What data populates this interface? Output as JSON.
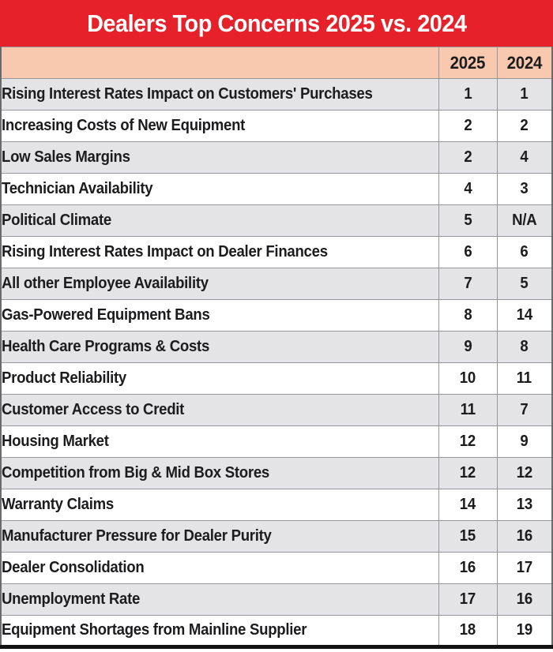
{
  "chart_data": {
    "type": "table",
    "title": "Dealers Top Concerns 2025 vs. 2024",
    "columns": [
      "",
      "2025",
      "2024"
    ],
    "rows": [
      {
        "concern": "Rising Interest Rates Impact on Customers' Purchases",
        "rank_2025": "1",
        "rank_2024": "1"
      },
      {
        "concern": "Increasing Costs of New Equipment",
        "rank_2025": "2",
        "rank_2024": "2"
      },
      {
        "concern": "Low Sales Margins",
        "rank_2025": "2",
        "rank_2024": "4"
      },
      {
        "concern": "Technician Availability",
        "rank_2025": "4",
        "rank_2024": "3"
      },
      {
        "concern": "Political Climate",
        "rank_2025": "5",
        "rank_2024": "N/A"
      },
      {
        "concern": "Rising Interest Rates Impact on Dealer Finances",
        "rank_2025": "6",
        "rank_2024": "6"
      },
      {
        "concern": "All other Employee Availability",
        "rank_2025": "7",
        "rank_2024": "5"
      },
      {
        "concern": "Gas-Powered Equipment Bans",
        "rank_2025": "8",
        "rank_2024": "14"
      },
      {
        "concern": "Health Care Programs & Costs",
        "rank_2025": "9",
        "rank_2024": "8"
      },
      {
        "concern": "Product Reliability",
        "rank_2025": "10",
        "rank_2024": "11"
      },
      {
        "concern": "Customer Access to Credit",
        "rank_2025": "11",
        "rank_2024": "7"
      },
      {
        "concern": "Housing Market",
        "rank_2025": "12",
        "rank_2024": "9"
      },
      {
        "concern": "Competition from Big & Mid Box Stores",
        "rank_2025": "12",
        "rank_2024": "12"
      },
      {
        "concern": "Warranty Claims",
        "rank_2025": "14",
        "rank_2024": "13"
      },
      {
        "concern": "Manufacturer Pressure for Dealer Purity",
        "rank_2025": "15",
        "rank_2024": "16"
      },
      {
        "concern": "Dealer Consolidation",
        "rank_2025": "16",
        "rank_2024": "17"
      },
      {
        "concern": "Unemployment Rate",
        "rank_2025": "17",
        "rank_2024": "16"
      },
      {
        "concern": "Equipment Shortages from Mainline Supplier",
        "rank_2025": "18",
        "rank_2024": "19"
      }
    ]
  },
  "colors": {
    "title_bar_red": "#e6212a",
    "title_text": "#ffffff",
    "header_peach": "#f8c9af",
    "row_alt_gray": "#e4e4e6",
    "row_white": "#ffffff",
    "grid_line": "#96979a",
    "outer_border": "#6a6b6d",
    "bottom_bar": "#121213",
    "body_text": "#1c1c1e"
  }
}
